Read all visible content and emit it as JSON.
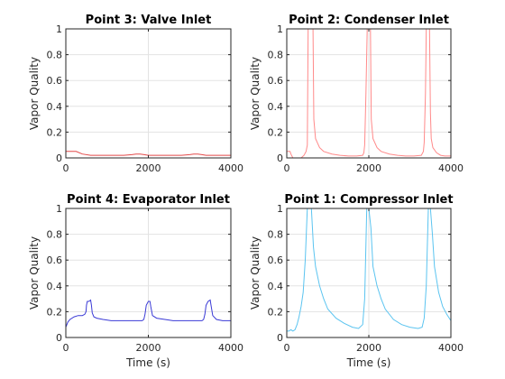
{
  "chart_data": [
    {
      "type": "line",
      "title": "Point 3: Valve Inlet",
      "xlabel": "",
      "ylabel": "Vapor Quality",
      "xlim": [
        0,
        4000
      ],
      "ylim": [
        0,
        1
      ],
      "xticks": [
        "0",
        "2000",
        "4000"
      ],
      "yticks": [
        "0",
        "0.2",
        "0.4",
        "0.6",
        "0.8",
        "1"
      ],
      "grid": true,
      "color": "#e34a4a",
      "series": [
        {
          "x": [
            0,
            150,
            250,
            400,
            600,
            800,
            1000,
            1200,
            1400,
            1600,
            1700,
            1800,
            1900,
            2000,
            2200,
            2400,
            2600,
            2800,
            3000,
            3100,
            3200,
            3300,
            3400,
            3600,
            3800,
            4000
          ],
          "y": [
            0.05,
            0.05,
            0.05,
            0.03,
            0.02,
            0.02,
            0.02,
            0.02,
            0.02,
            0.025,
            0.03,
            0.03,
            0.025,
            0.02,
            0.02,
            0.02,
            0.02,
            0.02,
            0.025,
            0.03,
            0.03,
            0.025,
            0.02,
            0.02,
            0.02,
            0.02
          ]
        }
      ]
    },
    {
      "type": "line",
      "title": "Point 2: Condenser Inlet",
      "xlabel": "",
      "ylabel": "Vapor Quality",
      "xlim": [
        0,
        4000
      ],
      "ylim": [
        0,
        1
      ],
      "xticks": [
        "0",
        "2000",
        "4000"
      ],
      "yticks": [
        "0",
        "0.2",
        "0.4",
        "0.6",
        "0.8",
        "1"
      ],
      "grid": true,
      "color": "#ff8a8a",
      "series": [
        {
          "x": [
            0,
            80,
            100,
            150,
            250,
            350,
            420,
            470,
            500,
            510,
            520,
            600,
            640,
            660,
            700,
            800,
            900,
            1100,
            1300,
            1500,
            1700,
            1850,
            1880,
            1900,
            1930,
            1960,
            2000,
            2040,
            2060,
            2100,
            2200,
            2300,
            2500,
            2700,
            2900,
            3100,
            3280,
            3330,
            3350,
            3380,
            3400,
            3420,
            3480,
            3500,
            3520,
            3560,
            3650,
            3750,
            3850,
            4000
          ],
          "y": [
            0.05,
            0.05,
            0.03,
            0.0,
            0.0,
            0.0,
            0.02,
            0.05,
            0.1,
            0.5,
            1.0,
            1.0,
            1.0,
            0.3,
            0.15,
            0.08,
            0.05,
            0.03,
            0.02,
            0.015,
            0.015,
            0.02,
            0.04,
            0.1,
            0.5,
            1.0,
            1.0,
            1.0,
            0.3,
            0.15,
            0.08,
            0.05,
            0.03,
            0.02,
            0.015,
            0.015,
            0.02,
            0.05,
            0.12,
            0.5,
            1.0,
            1.0,
            1.0,
            0.35,
            0.15,
            0.08,
            0.04,
            0.02,
            0.015,
            0.015
          ]
        }
      ]
    },
    {
      "type": "line",
      "title": "Point 4: Evaporator Inlet",
      "xlabel": "Time (s)",
      "ylabel": "Vapor Quality",
      "xlim": [
        0,
        4000
      ],
      "ylim": [
        0,
        1
      ],
      "xticks": [
        "0",
        "2000",
        "4000"
      ],
      "yticks": [
        "0",
        "0.2",
        "0.4",
        "0.6",
        "0.8",
        "1"
      ],
      "grid": true,
      "color": "#3a3ad6",
      "series": [
        {
          "x": [
            0,
            50,
            100,
            200,
            300,
            400,
            460,
            490,
            500,
            520,
            560,
            600,
            620,
            640,
            680,
            750,
            900,
            1100,
            1300,
            1500,
            1700,
            1850,
            1890,
            1920,
            1950,
            2000,
            2040,
            2060,
            2100,
            2200,
            2400,
            2600,
            2800,
            3000,
            3200,
            3300,
            3340,
            3370,
            3400,
            3450,
            3500,
            3520,
            3560,
            3650,
            3800,
            4000
          ],
          "y": [
            0.08,
            0.12,
            0.14,
            0.16,
            0.17,
            0.17,
            0.18,
            0.2,
            0.25,
            0.28,
            0.28,
            0.29,
            0.25,
            0.19,
            0.16,
            0.15,
            0.14,
            0.13,
            0.13,
            0.13,
            0.13,
            0.13,
            0.14,
            0.18,
            0.25,
            0.28,
            0.28,
            0.24,
            0.17,
            0.15,
            0.14,
            0.13,
            0.13,
            0.13,
            0.13,
            0.13,
            0.14,
            0.18,
            0.25,
            0.28,
            0.29,
            0.25,
            0.17,
            0.14,
            0.13,
            0.13
          ]
        }
      ]
    },
    {
      "type": "line",
      "title": "Point 1: Compressor Inlet",
      "xlabel": "Time (s)",
      "ylabel": "Vapor Quality",
      "xlim": [
        0,
        4000
      ],
      "ylim": [
        0,
        1
      ],
      "xticks": [
        "0",
        "2000",
        "4000"
      ],
      "yticks": [
        "0",
        "0.2",
        "0.4",
        "0.6",
        "0.8",
        "1"
      ],
      "grid": true,
      "color": "#5bc4f0",
      "series": [
        {
          "x": [
            0,
            50,
            100,
            150,
            200,
            250,
            300,
            350,
            400,
            450,
            500,
            550,
            600,
            650,
            700,
            800,
            900,
            1000,
            1200,
            1400,
            1600,
            1750,
            1850,
            1900,
            1950,
            2000,
            2050,
            2100,
            2200,
            2300,
            2400,
            2600,
            2800,
            3000,
            3200,
            3300,
            3350,
            3400,
            3450,
            3500,
            3550,
            3600,
            3700,
            3800,
            3900,
            4000
          ],
          "y": [
            0.05,
            0.05,
            0.06,
            0.05,
            0.06,
            0.1,
            0.16,
            0.24,
            0.35,
            0.6,
            1.0,
            1.0,
            1.0,
            0.7,
            0.55,
            0.4,
            0.3,
            0.22,
            0.15,
            0.11,
            0.08,
            0.07,
            0.1,
            0.3,
            1.0,
            1.0,
            0.85,
            0.55,
            0.4,
            0.3,
            0.22,
            0.14,
            0.1,
            0.08,
            0.07,
            0.08,
            0.15,
            0.4,
            1.0,
            1.0,
            0.8,
            0.55,
            0.35,
            0.24,
            0.18,
            0.13
          ]
        }
      ]
    }
  ]
}
